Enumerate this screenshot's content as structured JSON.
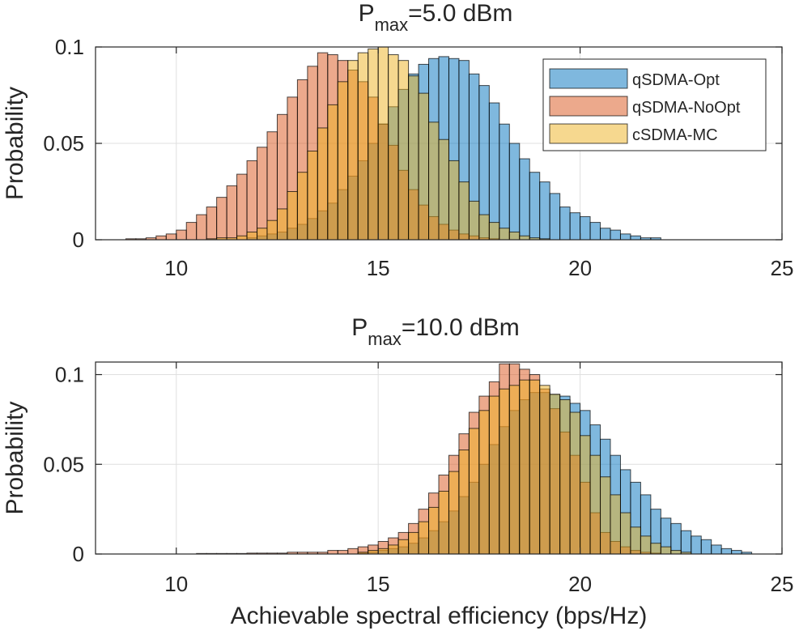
{
  "chart_data": [
    {
      "type": "bar",
      "title": "P",
      "title_sub": "max",
      "title_rest": "=5.0 dBm",
      "xlabel": "",
      "ylabel": "Probability",
      "xlim": [
        8,
        25
      ],
      "ylim": [
        0,
        0.1
      ],
      "xticks": [
        10,
        15,
        20,
        25
      ],
      "yticks": [
        0,
        0.05,
        0.1
      ],
      "ytick_labels": [
        "0",
        "0.05",
        "0.1"
      ],
      "grid": true,
      "legend_position": "top-right",
      "bin_width": 0.25,
      "series": [
        {
          "name": "qSDMA-Opt",
          "color": "#0072BD",
          "start": 11.75,
          "values": [
            0.001,
            0.002,
            0.003,
            0.004,
            0.006,
            0.008,
            0.011,
            0.015,
            0.019,
            0.026,
            0.033,
            0.041,
            0.05,
            0.06,
            0.069,
            0.078,
            0.086,
            0.091,
            0.094,
            0.095,
            0.094,
            0.093,
            0.086,
            0.08,
            0.071,
            0.06,
            0.05,
            0.042,
            0.035,
            0.03,
            0.024,
            0.017,
            0.014,
            0.012,
            0.009,
            0.006,
            0.005,
            0.003,
            0.002,
            0.001,
            0.001
          ]
        },
        {
          "name": "qSDMA-NoOpt",
          "color": "#D95319",
          "start": 8.75,
          "values": [
            0.0005,
            0.0005,
            0.001,
            0.002,
            0.003,
            0.005,
            0.009,
            0.013,
            0.017,
            0.022,
            0.028,
            0.034,
            0.041,
            0.048,
            0.056,
            0.065,
            0.074,
            0.083,
            0.09,
            0.097,
            0.096,
            0.093,
            0.088,
            0.082,
            0.074,
            0.06,
            0.049,
            0.036,
            0.026,
            0.018,
            0.012,
            0.008,
            0.005,
            0.003,
            0.002,
            0.001,
            0.0005
          ]
        },
        {
          "name": "cSDMA-MC",
          "color": "#EDB120",
          "start": 10.75,
          "values": [
            0.0005,
            0.001,
            0.001,
            0.002,
            0.004,
            0.006,
            0.01,
            0.016,
            0.025,
            0.035,
            0.046,
            0.058,
            0.07,
            0.082,
            0.093,
            0.097,
            0.099,
            0.1,
            0.096,
            0.093,
            0.085,
            0.076,
            0.061,
            0.052,
            0.041,
            0.03,
            0.02,
            0.013,
            0.009,
            0.006,
            0.004,
            0.002,
            0.001,
            0.0005
          ]
        }
      ]
    },
    {
      "type": "bar",
      "title": "P",
      "title_sub": "max",
      "title_rest": "=10.0 dBm",
      "xlabel": "Achievable spectral efficiency (bps/Hz)",
      "ylabel": "Probability",
      "xlim": [
        8,
        25
      ],
      "ylim": [
        0,
        0.107
      ],
      "xticks": [
        10,
        15,
        20,
        25
      ],
      "yticks": [
        0,
        0.05,
        0.1
      ],
      "ytick_labels": [
        "0",
        "0.05",
        "0.1"
      ],
      "grid": true,
      "legend_position": "none",
      "bin_width": 0.25,
      "series": [
        {
          "name": "qSDMA-Opt",
          "color": "#0072BD",
          "start": 14.5,
          "values": [
            0.0005,
            0.001,
            0.002,
            0.003,
            0.004,
            0.006,
            0.009,
            0.013,
            0.018,
            0.024,
            0.032,
            0.04,
            0.05,
            0.061,
            0.071,
            0.08,
            0.086,
            0.09,
            0.09,
            0.089,
            0.088,
            0.084,
            0.08,
            0.072,
            0.064,
            0.055,
            0.047,
            0.04,
            0.033,
            0.025,
            0.02,
            0.017,
            0.013,
            0.01,
            0.008,
            0.005,
            0.003,
            0.002,
            0.001
          ]
        },
        {
          "name": "qSDMA-NoOpt",
          "color": "#D95319",
          "start": 10.5,
          "values": [
            0.0003,
            0.0003,
            0.0003,
            0.0003,
            0.0003,
            0.0005,
            0.0005,
            0.0005,
            0.0005,
            0.001,
            0.001,
            0.001,
            0.001,
            0.002,
            0.002,
            0.003,
            0.004,
            0.005,
            0.007,
            0.009,
            0.012,
            0.017,
            0.025,
            0.034,
            0.044,
            0.055,
            0.067,
            0.079,
            0.088,
            0.096,
            0.106,
            0.106,
            0.103,
            0.1,
            0.092,
            0.081,
            0.068,
            0.055,
            0.04,
            0.023,
            0.012,
            0.007,
            0.004,
            0.002,
            0.001,
            0.0005
          ]
        },
        {
          "name": "cSDMA-MC",
          "color": "#EDB120",
          "start": 14.5,
          "values": [
            0.001,
            0.002,
            0.003,
            0.005,
            0.008,
            0.012,
            0.018,
            0.026,
            0.035,
            0.046,
            0.058,
            0.07,
            0.08,
            0.088,
            0.092,
            0.094,
            0.097,
            0.097,
            0.094,
            0.089,
            0.086,
            0.079,
            0.066,
            0.055,
            0.043,
            0.033,
            0.023,
            0.015,
            0.01,
            0.006,
            0.004,
            0.002,
            0.001
          ]
        }
      ]
    }
  ]
}
